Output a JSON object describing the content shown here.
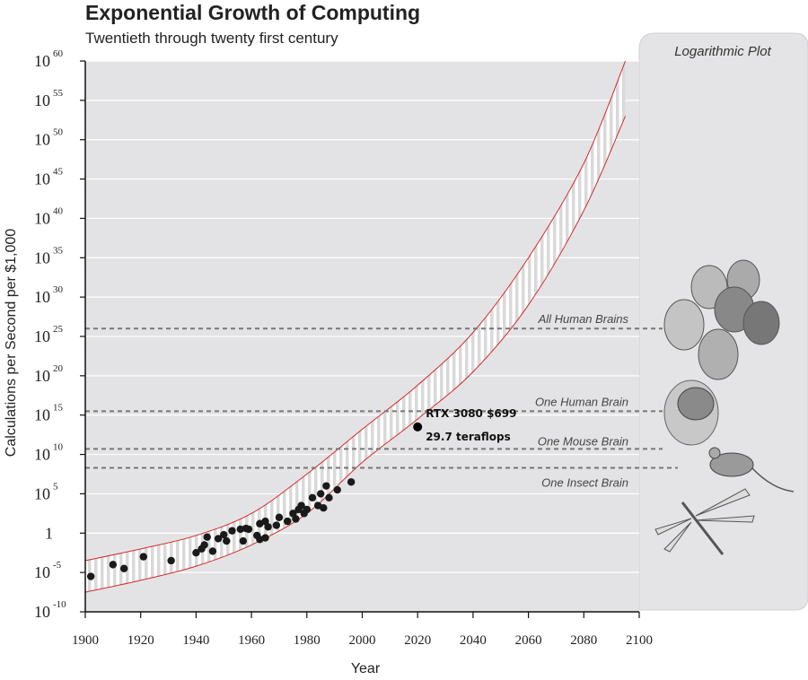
{
  "chart_data": {
    "type": "scatter",
    "title": "Exponential Growth of Computing",
    "subtitle": "Twentieth through twenty first century",
    "xlabel": "Year",
    "ylabel": "Calculations per Second per $1,000",
    "xlim": [
      1900,
      2100
    ],
    "ylim_log10": [
      -10,
      60
    ],
    "y_scale": "log",
    "panel_label": "Logarithmic Plot",
    "x_ticks": [
      "1900",
      "1920",
      "1940",
      "1960",
      "1980",
      "2000",
      "2020",
      "2040",
      "2060",
      "2080",
      "2100"
    ],
    "y_ticks": [
      {
        "base": "10",
        "exp": "60",
        "value": 60
      },
      {
        "base": "10",
        "exp": "55",
        "value": 55
      },
      {
        "base": "10",
        "exp": "50",
        "value": 50
      },
      {
        "base": "10",
        "exp": "45",
        "value": 45
      },
      {
        "base": "10",
        "exp": "40",
        "value": 40
      },
      {
        "base": "10",
        "exp": "35",
        "value": 35
      },
      {
        "base": "10",
        "exp": "30",
        "value": 30
      },
      {
        "base": "10",
        "exp": "25",
        "value": 25
      },
      {
        "base": "10",
        "exp": "20",
        "value": 20
      },
      {
        "base": "10",
        "exp": "15",
        "value": 15
      },
      {
        "base": "10",
        "exp": "10",
        "value": 10
      },
      {
        "base": "10",
        "exp": "5",
        "value": 5
      },
      {
        "base": "1",
        "exp": "",
        "value": 0
      },
      {
        "base": "10",
        "exp": "-5",
        "value": -5
      },
      {
        "base": "10",
        "exp": "-10",
        "value": -10
      }
    ],
    "reference_lines": [
      {
        "label": "All Human Brains",
        "log10": 26
      },
      {
        "label": "One Human Brain",
        "log10": 15.5
      },
      {
        "label": "One Mouse Brain",
        "log10": 10.7
      },
      {
        "label": "One Insect Brain",
        "log10": 8.3
      }
    ],
    "trend_band": {
      "x": [
        1900,
        1920,
        1940,
        1960,
        1980,
        2000,
        2020,
        2040,
        2060,
        2080,
        2095
      ],
      "lower_log10": [
        -7.5,
        -6,
        -4.2,
        -1.5,
        2.5,
        9,
        14.5,
        20.5,
        29,
        41,
        53
      ],
      "upper_log10": [
        -3.5,
        -2,
        -0.3,
        2.5,
        7.5,
        13.2,
        18.8,
        25.5,
        35,
        47,
        60
      ]
    },
    "points": [
      {
        "x": 1902,
        "y": -5.5
      },
      {
        "x": 1910,
        "y": -4
      },
      {
        "x": 1914,
        "y": -4.5
      },
      {
        "x": 1921,
        "y": -3
      },
      {
        "x": 1931,
        "y": -3.5
      },
      {
        "x": 1940,
        "y": -2.5
      },
      {
        "x": 1942,
        "y": -2
      },
      {
        "x": 1943,
        "y": -1.5
      },
      {
        "x": 1944,
        "y": -0.5
      },
      {
        "x": 1946,
        "y": -2.3
      },
      {
        "x": 1948,
        "y": -0.7
      },
      {
        "x": 1950,
        "y": -0.2
      },
      {
        "x": 1951,
        "y": -1
      },
      {
        "x": 1953,
        "y": 0.3
      },
      {
        "x": 1956,
        "y": 0.5
      },
      {
        "x": 1957,
        "y": -1
      },
      {
        "x": 1958,
        "y": 0.6
      },
      {
        "x": 1959,
        "y": 0.5
      },
      {
        "x": 1962,
        "y": -0.3
      },
      {
        "x": 1963,
        "y": -0.8
      },
      {
        "x": 1963,
        "y": 1.2
      },
      {
        "x": 1965,
        "y": -0.6
      },
      {
        "x": 1965,
        "y": 1.5
      },
      {
        "x": 1966,
        "y": 0.8
      },
      {
        "x": 1969,
        "y": 1
      },
      {
        "x": 1970,
        "y": 2
      },
      {
        "x": 1973,
        "y": 1.5
      },
      {
        "x": 1975,
        "y": 2.5
      },
      {
        "x": 1976,
        "y": 1.8
      },
      {
        "x": 1977,
        "y": 3
      },
      {
        "x": 1978,
        "y": 3.5
      },
      {
        "x": 1979,
        "y": 2.5
      },
      {
        "x": 1980,
        "y": 3
      },
      {
        "x": 1982,
        "y": 4.5
      },
      {
        "x": 1984,
        "y": 3.5
      },
      {
        "x": 1985,
        "y": 5
      },
      {
        "x": 1986,
        "y": 3.2
      },
      {
        "x": 1987,
        "y": 6
      },
      {
        "x": 1988,
        "y": 4.5
      },
      {
        "x": 1991,
        "y": 5.5
      },
      {
        "x": 1996,
        "y": 6.5
      }
    ],
    "highlight_point": {
      "x": 2020,
      "y": 13.5,
      "label_top": "RTX 3080 $699",
      "label_bottom": "29.7 teraflops"
    }
  }
}
